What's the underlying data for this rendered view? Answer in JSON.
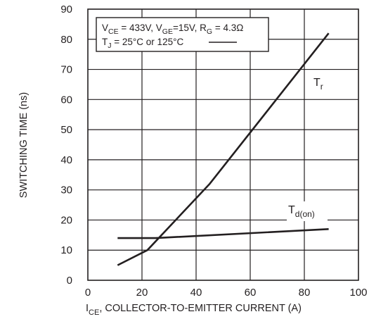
{
  "chart_data": {
    "type": "line",
    "xlabel": {
      "main": "I",
      "sub": "CE",
      "rest": ", COLLECTOR-TO-EMITTER CURRENT (A)"
    },
    "ylabel": "SWITCHING TIME (ns)",
    "xlim": [
      0,
      100
    ],
    "ylim": [
      0,
      90
    ],
    "xticks": [
      0,
      20,
      40,
      60,
      80,
      100
    ],
    "yticks": [
      0,
      10,
      20,
      30,
      40,
      50,
      60,
      70,
      80,
      90
    ],
    "grid": true,
    "conditions": {
      "line1": {
        "v": "V",
        "v_sub": "CE",
        "v_val": " = 433V, V",
        "vge_sub": "GE",
        "vge_val": "=15V, R",
        "rg_sub": "G",
        "rg_val": " = 4.3Ω"
      },
      "line2": {
        "t": "T",
        "t_sub": "J",
        "t_val": " = 25°C or 125°C"
      }
    },
    "series": [
      {
        "name": "Tr",
        "label_main": "T",
        "label_sub": "r",
        "x": [
          11,
          22,
          45,
          89
        ],
        "y": [
          5,
          10,
          32,
          82
        ]
      },
      {
        "name": "Td(on)",
        "label_main": "T",
        "label_sub": "d(on)",
        "x": [
          11,
          25,
          89
        ],
        "y": [
          14,
          14,
          17
        ]
      }
    ]
  }
}
